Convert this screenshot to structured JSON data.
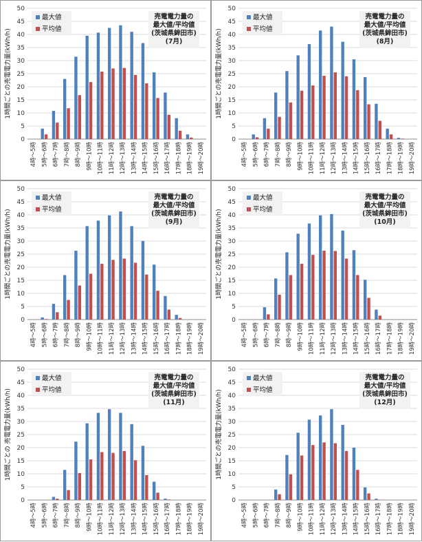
{
  "chart_data": [
    {
      "type": "bar",
      "title_lines": [
        "売電電力量の",
        "最大値/平均値",
        "(茨城県鉾田市)",
        "(7月)"
      ],
      "ylabel": "1時間ごとの売電電力量(kWh/h)",
      "ylim": [
        0,
        50
      ],
      "yticks": [
        0,
        5,
        10,
        15,
        20,
        25,
        30,
        35,
        40,
        45,
        50
      ],
      "categories": [
        "4時～5時",
        "5時～6時",
        "6時～7時",
        "7時～8時",
        "8時～9時",
        "9時～10時",
        "10時～11時",
        "11時～12時",
        "12時～13時",
        "13時～14時",
        "14時～15時",
        "15時～16時",
        "16時～17時",
        "17時～18時",
        "18時～19時",
        "19時～20時"
      ],
      "series": [
        {
          "name": "最大値",
          "color": "#4f81bd",
          "values": [
            0,
            4,
            10.8,
            23,
            31.5,
            39.5,
            40.7,
            42.5,
            43.5,
            41,
            36.7,
            25.5,
            17.8,
            8,
            1.8,
            0
          ]
        },
        {
          "name": "平均値",
          "color": "#c0504d",
          "values": [
            0,
            1.8,
            6.3,
            11.8,
            16.8,
            21.8,
            25.8,
            27,
            27.2,
            24.5,
            21.3,
            15.7,
            9.3,
            3.2,
            0.6,
            0
          ]
        }
      ]
    },
    {
      "type": "bar",
      "title_lines": [
        "売電電力量の",
        "最大値/平均値",
        "(茨城県鉾田市)",
        "(8月)"
      ],
      "ylabel": "1時間ごとの売電電力量(kWh/h)",
      "ylim": [
        0,
        50
      ],
      "yticks": [
        0,
        5,
        10,
        15,
        20,
        25,
        30,
        35,
        40,
        45,
        50
      ],
      "categories": [
        "4時～5時",
        "5時～6時",
        "6時～7時",
        "7時～8時",
        "8時～9時",
        "9時～10時",
        "10時～11時",
        "11時～12時",
        "12時～13時",
        "13時～14時",
        "14時～15時",
        "15時～16時",
        "16時～17時",
        "17時～18時",
        "18時～19時",
        "19時～20時"
      ],
      "series": [
        {
          "name": "最大値",
          "color": "#4f81bd",
          "values": [
            0,
            1.8,
            8,
            17.8,
            26,
            32,
            36.3,
            41.5,
            43,
            37.2,
            30.5,
            23.7,
            13.5,
            4,
            0.5,
            0
          ]
        },
        {
          "name": "平均値",
          "color": "#c0504d",
          "values": [
            0,
            0.7,
            4,
            8.5,
            14,
            18.5,
            20.5,
            24.2,
            25.5,
            24,
            18.7,
            13.3,
            7,
            1.8,
            0.2,
            0
          ]
        }
      ]
    },
    {
      "type": "bar",
      "title_lines": [
        "売電電力量の",
        "最大値/平均値",
        "(茨城県鉾田市)",
        "(9月)"
      ],
      "ylabel": "1時間ごとの売電電力量(kWh/h)",
      "ylim": [
        0,
        50
      ],
      "yticks": [
        0,
        5,
        10,
        15,
        20,
        25,
        30,
        35,
        40,
        45,
        50
      ],
      "categories": [
        "4時～5時",
        "5時～6時",
        "6時～7時",
        "7時～8時",
        "8時～9時",
        "9時～10時",
        "10時～11時",
        "11時～12時",
        "12時～13時",
        "13時～14時",
        "14時～15時",
        "15時～16時",
        "16時～17時",
        "17時～18時",
        "18時～19時",
        "19時～20時"
      ],
      "series": [
        {
          "name": "最大値",
          "color": "#4f81bd",
          "values": [
            0,
            0.8,
            6,
            17,
            26.3,
            35.7,
            37.8,
            39.8,
            41.3,
            35.7,
            30,
            21,
            9,
            1.8,
            0,
            0
          ]
        },
        {
          "name": "平均値",
          "color": "#c0504d",
          "values": [
            0,
            0.2,
            2.8,
            7.5,
            13,
            17.5,
            21.3,
            22.8,
            23.3,
            21.7,
            17.2,
            11,
            3.8,
            0.6,
            0,
            0
          ]
        }
      ]
    },
    {
      "type": "bar",
      "title_lines": [
        "売電電力量の",
        "最大値/平均値",
        "(茨城県鉾田市)",
        "(10月)"
      ],
      "ylabel": "1時間ごとの売電電力量(kWh/h)",
      "ylim": [
        0,
        50
      ],
      "yticks": [
        0,
        5,
        10,
        15,
        20,
        25,
        30,
        35,
        40,
        45,
        50
      ],
      "categories": [
        "4時～5時",
        "5時～6時",
        "6時～7時",
        "7時～8時",
        "8時～9時",
        "9時～10時",
        "10時～11時",
        "11時～12時",
        "12時～13時",
        "13時～14時",
        "14時～15時",
        "15時～16時",
        "16時～17時",
        "17時～18時",
        "18時～19時",
        "19時～20時"
      ],
      "series": [
        {
          "name": "最大値",
          "color": "#4f81bd",
          "values": [
            0,
            0,
            4.7,
            15.7,
            25.7,
            32.8,
            36.7,
            39.8,
            40.3,
            34,
            26.5,
            15.2,
            3.8,
            0,
            0,
            0
          ]
        },
        {
          "name": "平均値",
          "color": "#c0504d",
          "values": [
            0,
            0,
            2,
            9.5,
            17,
            21.3,
            24.7,
            26.3,
            26.2,
            23.3,
            17,
            8.3,
            1.5,
            0,
            0,
            0
          ]
        }
      ]
    },
    {
      "type": "bar",
      "title_lines": [
        "売電電力量の",
        "最大値/平均値",
        "(茨城県鉾田市)",
        "(11月)"
      ],
      "ylabel": "1時間ごとの 売電電力量(kWh/h)",
      "ylim": [
        0,
        50
      ],
      "yticks": [
        0,
        5,
        10,
        15,
        20,
        25,
        30,
        35,
        40,
        45,
        50
      ],
      "categories": [
        "4時～5時",
        "5時～6時",
        "6時～7時",
        "7時～8時",
        "8時～9時",
        "9時～10時",
        "10時～11時",
        "11時～12時",
        "12時～13時",
        "13時～14時",
        "14時～15時",
        "15時～16時",
        "16時～17時",
        "17時～18時",
        "18時～19時",
        "19時～20時"
      ],
      "series": [
        {
          "name": "最大値",
          "color": "#4f81bd",
          "values": [
            0,
            0,
            1.2,
            11.5,
            22.3,
            29.3,
            33.3,
            34.7,
            33.3,
            29,
            20.7,
            7,
            0.5,
            0,
            0,
            0
          ]
        },
        {
          "name": "平均値",
          "color": "#c0504d",
          "values": [
            0,
            0,
            0.5,
            3.8,
            10.3,
            15.5,
            18.3,
            18,
            18.7,
            15.2,
            9.5,
            2.8,
            0.2,
            0,
            0,
            0
          ]
        }
      ]
    },
    {
      "type": "bar",
      "title_lines": [
        "売電電力量の",
        "最大値/平均値",
        "(茨城県鉾田市)",
        "(12月)"
      ],
      "ylabel": "1時間ごとの売電電力量(kWh/h)",
      "ylim": [
        0,
        50
      ],
      "yticks": [
        0,
        5,
        10,
        15,
        20,
        25,
        30,
        35,
        40,
        45,
        50
      ],
      "categories": [
        "4時～5時",
        "5時～6時",
        "6時～7時",
        "7時～8時",
        "8時～9時",
        "9時～10時",
        "10時～11時",
        "11時～12時",
        "12時～13時",
        "13時～14時",
        "14時～15時",
        "15時～16時",
        "16時～17時",
        "17時～18時",
        "18時～19時",
        "19時～20時"
      ],
      "series": [
        {
          "name": "最大値",
          "color": "#4f81bd",
          "values": [
            0,
            0,
            0,
            4,
            17.2,
            25.7,
            30.7,
            32.3,
            34.7,
            28.7,
            20,
            4.8,
            0.5,
            0,
            0,
            0
          ]
        },
        {
          "name": "平均値",
          "color": "#c0504d",
          "values": [
            0,
            0,
            0,
            2.2,
            9.8,
            17,
            21,
            22,
            21.7,
            18.7,
            11.5,
            2.5,
            0.1,
            0,
            0,
            0
          ]
        }
      ]
    }
  ]
}
